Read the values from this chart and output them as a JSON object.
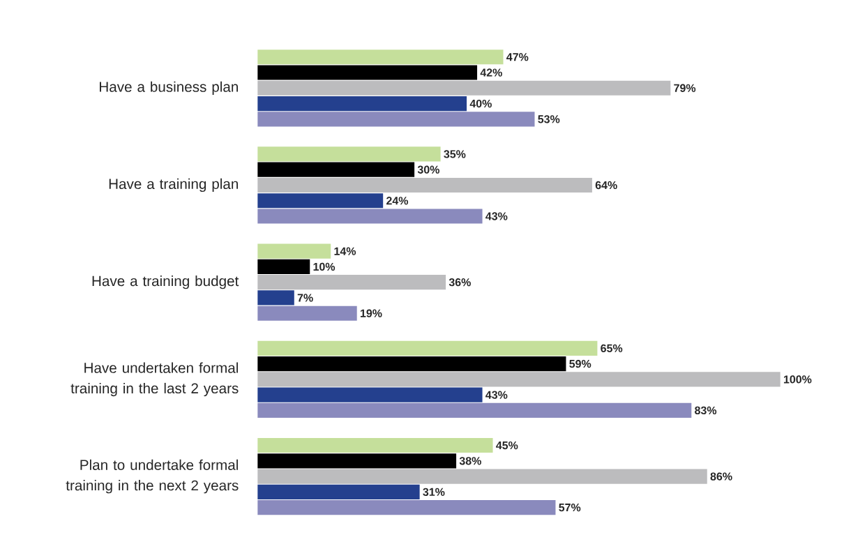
{
  "chart_data": {
    "type": "bar",
    "orientation": "horizontal",
    "categories": [
      "Have a business plan",
      "Have a training plan",
      "Have a training budget",
      "Have undertaken formal training in the last 2 years",
      "Plan to undertake formal training in the next 2 years"
    ],
    "series": [
      {
        "color": "#c5df9b",
        "values": [
          47,
          35,
          14,
          65,
          45
        ],
        "value_labels": [
          "47%",
          "35%",
          "14%",
          "65%",
          "45%"
        ]
      },
      {
        "color": "#000000",
        "values": [
          42,
          30,
          10,
          59,
          38
        ],
        "value_labels": [
          "42%",
          "30%",
          "10%",
          "59%",
          "38%"
        ]
      },
      {
        "color": "#bcbcbe",
        "values": [
          79,
          64,
          36,
          100,
          86
        ],
        "value_labels": [
          "79%",
          "64%",
          "36%",
          "100%",
          "86%"
        ]
      },
      {
        "color": "#24408e",
        "values": [
          40,
          24,
          7,
          43,
          31
        ],
        "value_labels": [
          "40%",
          "24%",
          "7%",
          "43%",
          "31%"
        ]
      },
      {
        "color": "#8a8abd",
        "values": [
          53,
          43,
          19,
          83,
          57
        ],
        "value_labels": [
          "53%",
          "43%",
          "19%",
          "83%",
          "57%"
        ]
      }
    ]
  }
}
